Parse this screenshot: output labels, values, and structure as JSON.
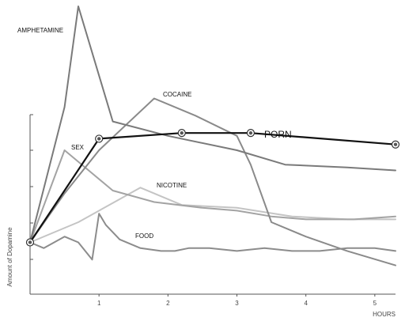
{
  "chart_data": {
    "type": "line",
    "title": "",
    "xlabel": "HOURS",
    "ylabel": "Amount of Dopamine",
    "xlim": [
      0,
      5.3
    ],
    "ylim": [
      0,
      100
    ],
    "x_ticks": [
      "1",
      "2",
      "3",
      "4",
      "5"
    ],
    "grid": false,
    "legend": "none",
    "series": [
      {
        "name": "AMPHETAMINE",
        "color": "#7a7a7a",
        "x": [
          0,
          0.5,
          0.7,
          1.2,
          2.0,
          3.0,
          3.7,
          4.6,
          5.3
        ],
        "y": [
          18,
          65,
          100,
          60,
          55,
          50,
          45,
          44,
          43
        ]
      },
      {
        "name": "COCAINE",
        "color": "#8a8a8a",
        "x": [
          0,
          0.5,
          1.0,
          1.8,
          2.4,
          3.0,
          3.2,
          3.5,
          4.0,
          4.6,
          5.3
        ],
        "y": [
          18,
          35,
          50,
          68,
          62,
          55,
          45,
          25,
          20,
          15,
          10
        ]
      },
      {
        "name": "SEX",
        "color": "#a3a3a3",
        "x": [
          0,
          0.5,
          1.2,
          1.8,
          2.5,
          3.0,
          3.5,
          4.0,
          4.7,
          5.3
        ],
        "y": [
          18,
          50,
          36,
          32,
          30,
          29,
          27,
          26,
          26,
          27
        ]
      },
      {
        "name": "NICOTINE",
        "color": "#c4c4c4",
        "x": [
          0,
          0.7,
          1.6,
          2.2,
          3.0,
          3.8,
          4.6,
          5.3
        ],
        "y": [
          18,
          25,
          37,
          31,
          30,
          27,
          26,
          26
        ]
      },
      {
        "name": "FOOD",
        "color": "#8c8c8c",
        "x": [
          0,
          0.2,
          0.5,
          0.7,
          0.9,
          1.0,
          1.1,
          1.3,
          1.6,
          1.9,
          2.1,
          2.3,
          2.6,
          3.0,
          3.4,
          3.8,
          4.2,
          4.6,
          5.0,
          5.3
        ],
        "y": [
          18,
          16,
          20,
          18,
          12,
          28,
          24,
          19,
          16,
          15,
          15,
          16,
          16,
          15,
          16,
          15,
          15,
          16,
          16,
          15
        ]
      },
      {
        "name": "PORN",
        "color": "#111111",
        "x": [
          0,
          1.0,
          2.2,
          3.2,
          5.3
        ],
        "y": [
          18,
          54,
          56,
          56,
          52
        ],
        "markers": true
      }
    ]
  }
}
